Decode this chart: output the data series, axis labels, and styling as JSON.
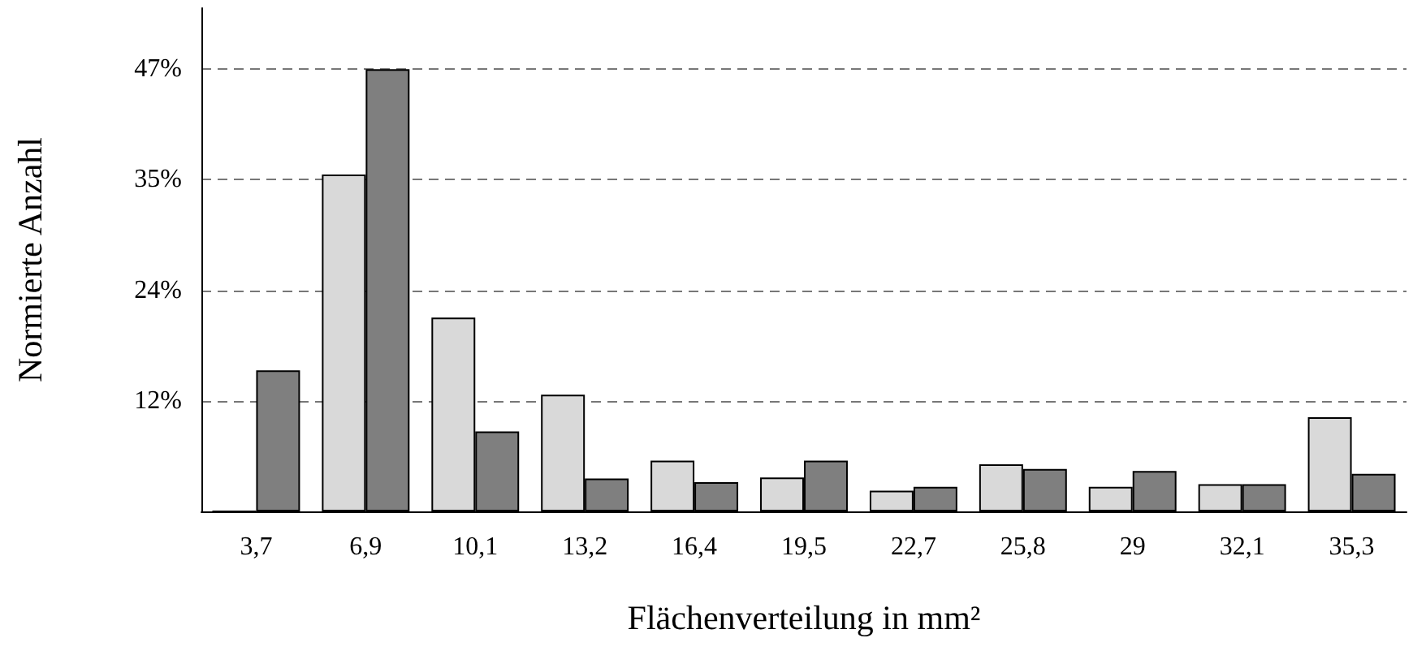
{
  "chart_data": {
    "type": "bar",
    "xlabel": "Flächenverteilung in mm²",
    "ylabel": "Normierte Anzahl",
    "categories": [
      "3,7",
      "6,9",
      "10,1",
      "13,2",
      "16,4",
      "19,5",
      "22,7",
      "25,8",
      "29",
      "32,1",
      "35,3"
    ],
    "series": [
      {
        "color": "#d9d9d9",
        "values": [
          0,
          35.8,
          20.6,
          12.4,
          5.4,
          3.6,
          2.2,
          5.0,
          2.6,
          2.9,
          10.0
        ]
      },
      {
        "color": "#7f7f7f",
        "values": [
          15.0,
          47.0,
          8.5,
          3.5,
          3.1,
          5.4,
          2.6,
          4.5,
          4.3,
          2.9,
          4.0
        ]
      }
    ],
    "ylim": [
      0,
      53.5
    ],
    "yticks": [
      {
        "value": 11.75,
        "label": "12%"
      },
      {
        "value": 23.5,
        "label": "24%"
      },
      {
        "value": 35.25,
        "label": "35%"
      },
      {
        "value": 47,
        "label": "47%"
      }
    ],
    "grid": "y"
  }
}
